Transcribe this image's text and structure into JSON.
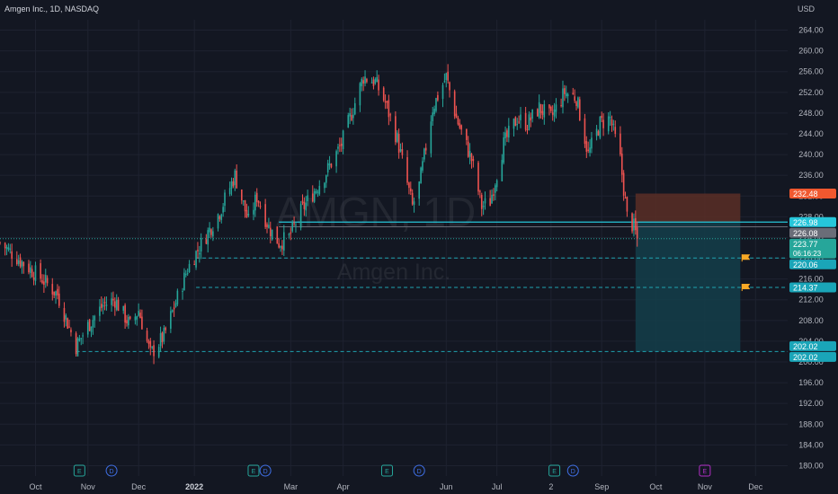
{
  "header": {
    "symbol_line": "Amgen Inc., 1D, NASDAQ",
    "currency": "USD"
  },
  "watermark": {
    "ticker": "AMGN, 1D",
    "name": "Amgen Inc."
  },
  "colors": {
    "background": "#131722",
    "grid": "#1e2230",
    "up": "#26a69a",
    "down": "#ef5350",
    "axis_text": "#b2b5be",
    "cyan_line": "#26c6da",
    "dashed_line": "#1fa3b0",
    "stop_zone": "#5a2e26",
    "target_zone": "#143e4a",
    "stop_label": "#f0582f",
    "entry_label": "#26c6da",
    "current_label": "#26a69a",
    "target_label": "#1aa5b8",
    "gray_label": "#6a6d78",
    "flag": "#f9a825",
    "earnings": "#26a69a",
    "dividend": "#3f6fe5",
    "future_earnings": "#b02ec4"
  },
  "chart_data": {
    "type": "candlestick",
    "title": "Amgen Inc., 1D, NASDAQ",
    "ylabel": "USD",
    "ylim": [
      178,
      266
    ],
    "y_ticks": [
      180,
      184,
      188,
      192,
      196,
      200,
      204,
      208,
      212,
      216,
      220,
      224,
      228,
      232,
      236,
      240,
      244,
      248,
      252,
      256,
      260,
      264
    ],
    "y_tick_labels": [
      "180.00",
      "184.00",
      "188.00",
      "192.00",
      "196.00",
      "200.00",
      "204.00",
      "208.00",
      "212.00",
      "216.00",
      "220.00",
      "224.00",
      "228.00",
      "232.00",
      "236.00",
      "240.00",
      "244.00",
      "248.00",
      "252.00",
      "256.00",
      "260.00",
      "264.00"
    ],
    "x_labels": [
      {
        "label": "Oct",
        "date": "2021-10-01",
        "bold": false
      },
      {
        "label": "Nov",
        "date": "2021-11-01",
        "bold": false
      },
      {
        "label": "Dec",
        "date": "2021-12-01",
        "bold": false
      },
      {
        "label": "2022",
        "date": "2022-01-03",
        "bold": true
      },
      {
        "label": "Mar",
        "date": "2022-03-01",
        "bold": false
      },
      {
        "label": "Apr",
        "date": "2022-04-01",
        "bold": false
      },
      {
        "label": "Jun",
        "date": "2022-06-01",
        "bold": false
      },
      {
        "label": "Jul",
        "date": "2022-07-01",
        "bold": false
      },
      {
        "label": "2",
        "date": "2022-08-02",
        "bold": false
      },
      {
        "label": "Sep",
        "date": "2022-09-01",
        "bold": false
      },
      {
        "label": "Oct",
        "date": "2022-10-03",
        "bold": false
      },
      {
        "label": "Nov",
        "date": "2022-11-01",
        "bold": false
      },
      {
        "label": "Dec",
        "date": "2022-12-01",
        "bold": false
      }
    ],
    "x_range": [
      "2021-09-10",
      "2022-12-20"
    ],
    "price_path": [
      [
        "2021-09-10",
        223
      ],
      [
        "2021-09-24",
        219
      ],
      [
        "2021-10-05",
        216
      ],
      [
        "2021-10-14",
        213
      ],
      [
        "2021-10-25",
        203
      ],
      [
        "2021-11-01",
        207
      ],
      [
        "2021-11-10",
        211
      ],
      [
        "2021-11-17",
        212
      ],
      [
        "2021-11-26",
        207
      ],
      [
        "2021-12-01",
        210
      ],
      [
        "2021-12-08",
        201.5
      ],
      [
        "2021-12-16",
        205
      ],
      [
        "2021-12-30",
        218
      ],
      [
        "2022-01-04",
        221
      ],
      [
        "2022-01-18",
        229
      ],
      [
        "2022-01-27",
        236
      ],
      [
        "2022-02-04",
        227
      ],
      [
        "2022-02-09",
        232
      ],
      [
        "2022-02-16",
        226
      ],
      [
        "2022-02-22",
        223
      ],
      [
        "2022-02-28",
        224
      ],
      [
        "2022-03-07",
        229
      ],
      [
        "2022-03-21",
        236
      ],
      [
        "2022-03-31",
        242
      ],
      [
        "2022-04-08",
        250
      ],
      [
        "2022-04-13",
        255
      ],
      [
        "2022-04-20",
        254
      ],
      [
        "2022-04-26",
        250
      ],
      [
        "2022-05-03",
        243
      ],
      [
        "2022-05-12",
        230
      ],
      [
        "2022-05-16",
        234
      ],
      [
        "2022-05-24",
        249
      ],
      [
        "2022-06-01",
        255
      ],
      [
        "2022-06-07",
        247
      ],
      [
        "2022-06-16",
        239
      ],
      [
        "2022-06-22",
        230
      ],
      [
        "2022-06-27",
        231
      ],
      [
        "2022-07-05",
        242
      ],
      [
        "2022-07-13",
        247
      ],
      [
        "2022-07-19",
        246
      ],
      [
        "2022-07-26",
        249
      ],
      [
        "2022-08-02",
        247
      ],
      [
        "2022-08-10",
        252
      ],
      [
        "2022-08-17",
        251
      ],
      [
        "2022-08-24",
        240
      ],
      [
        "2022-08-31",
        246
      ],
      [
        "2022-09-06",
        247
      ],
      [
        "2022-09-12",
        239
      ],
      [
        "2022-09-16",
        228
      ],
      [
        "2022-09-20",
        226
      ],
      [
        "2022-09-22",
        223.8
      ]
    ],
    "candle_seed": 7,
    "horizontal_lines": [
      {
        "price": 226.98,
        "style": "solid",
        "from": "2022-02-22",
        "color_key": "cyan_line"
      },
      {
        "price": 226.08,
        "style": "solid",
        "from": "2022-02-22",
        "color_key": "gray_label"
      },
      {
        "price": 223.77,
        "style": "dotted",
        "from": "2021-09-10",
        "color_key": "current_label"
      },
      {
        "price": 220.06,
        "style": "dashed",
        "from": "2022-01-04",
        "color_key": "dashed_line"
      },
      {
        "price": 214.37,
        "style": "dashed",
        "from": "2022-01-04",
        "color_key": "dashed_line"
      },
      {
        "price": 202.02,
        "style": "dashed",
        "from": "2021-10-25",
        "color_key": "dashed_line"
      }
    ],
    "position": {
      "from": "2022-09-21",
      "to": "2022-11-22",
      "stop": 232.48,
      "entry": 226.98,
      "target": 202.02
    },
    "flags": [
      {
        "price": 220.06,
        "date": "2022-11-23"
      },
      {
        "price": 214.37,
        "date": "2022-11-23"
      }
    ],
    "events": [
      {
        "type": "E",
        "date": "2021-10-27",
        "color_key": "earnings"
      },
      {
        "type": "D",
        "date": "2021-11-15",
        "color_key": "dividend"
      },
      {
        "type": "E",
        "date": "2022-02-07",
        "color_key": "earnings"
      },
      {
        "type": "D",
        "date": "2022-02-14",
        "color_key": "dividend"
      },
      {
        "type": "E",
        "date": "2022-04-27",
        "color_key": "earnings"
      },
      {
        "type": "D",
        "date": "2022-05-16",
        "color_key": "dividend"
      },
      {
        "type": "E",
        "date": "2022-08-04",
        "color_key": "earnings"
      },
      {
        "type": "D",
        "date": "2022-08-15",
        "color_key": "dividend"
      },
      {
        "type": "E",
        "date": "2022-11-01",
        "color_key": "future_earnings"
      }
    ],
    "price_labels": [
      {
        "text": "232.48",
        "price": 232.48,
        "color_key": "stop_label"
      },
      {
        "text": "226.98",
        "price": 226.98,
        "color_key": "entry_label"
      },
      {
        "text": "226.08",
        "price": 226.08,
        "color_key": "gray_label"
      },
      {
        "text": "223.77",
        "sub": "06:16:23",
        "price": 223.77,
        "color_key": "current_label"
      },
      {
        "text": "220.06",
        "price": 220.06,
        "color_key": "target_label"
      },
      {
        "text": "214.37",
        "price": 214.37,
        "color_key": "target_label"
      },
      {
        "text": "202.02",
        "price": 202.02,
        "color_key": "target_label",
        "offset": -1
      },
      {
        "text": "202.02",
        "price": 202.02,
        "color_key": "target_label",
        "offset": 1
      }
    ]
  }
}
